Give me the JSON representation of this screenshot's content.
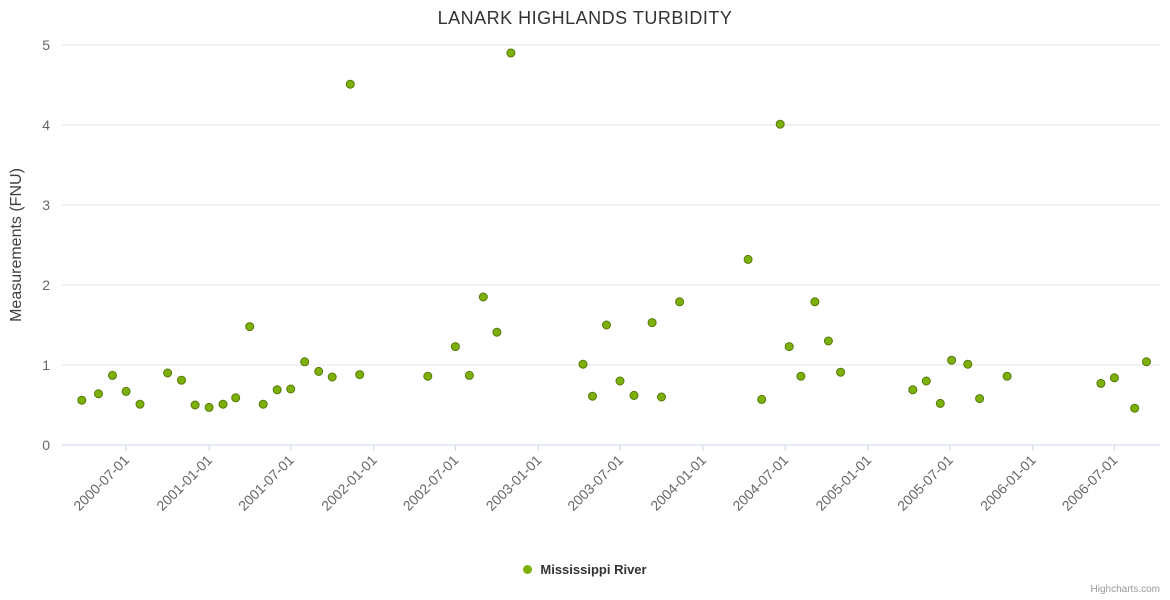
{
  "credits": "Highcharts.com",
  "chart_data": {
    "type": "scatter",
    "title": "LANARK HIGHLANDS TURBIDITY",
    "xlabel": "",
    "ylabel": "Measurements (FNU)",
    "series_name": "Mississippi River",
    "ylim": [
      0,
      5
    ],
    "y_ticks": [
      "0",
      "1",
      "2",
      "3",
      "4",
      "5"
    ],
    "x_range": [
      "2000-02-10",
      "2006-10-10"
    ],
    "x_ticks": [
      "2000-07-01",
      "2001-01-01",
      "2001-07-01",
      "2002-01-01",
      "2002-07-01",
      "2003-01-01",
      "2003-07-01",
      "2004-01-01",
      "2004-07-01",
      "2005-01-01",
      "2005-07-01",
      "2006-01-01",
      "2006-07-01"
    ],
    "grid": "horizontal-only",
    "legend_position": "bottom-center",
    "series": [
      {
        "name": "Mississippi River",
        "points": [
          [
            "2000-03-25",
            0.56
          ],
          [
            "2000-05-01",
            0.64
          ],
          [
            "2000-06-01",
            0.87
          ],
          [
            "2000-07-01",
            0.67
          ],
          [
            "2000-08-01",
            0.51
          ],
          [
            "2000-10-01",
            0.9
          ],
          [
            "2000-11-01",
            0.81
          ],
          [
            "2000-12-01",
            0.5
          ],
          [
            "2001-01-01",
            0.47
          ],
          [
            "2001-02-01",
            0.51
          ],
          [
            "2001-03-01",
            0.59
          ],
          [
            "2001-04-01",
            1.48
          ],
          [
            "2001-05-01",
            0.51
          ],
          [
            "2001-06-01",
            0.69
          ],
          [
            "2001-07-01",
            0.7
          ],
          [
            "2001-08-01",
            1.04
          ],
          [
            "2001-09-01",
            0.92
          ],
          [
            "2001-10-01",
            0.85
          ],
          [
            "2001-11-10",
            4.51
          ],
          [
            "2001-12-01",
            0.88
          ],
          [
            "2002-05-01",
            0.86
          ],
          [
            "2002-07-01",
            1.23
          ],
          [
            "2002-08-01",
            0.87
          ],
          [
            "2002-09-01",
            1.85
          ],
          [
            "2002-10-01",
            1.41
          ],
          [
            "2002-11-01",
            4.9
          ],
          [
            "2003-04-10",
            1.01
          ],
          [
            "2003-05-01",
            0.61
          ],
          [
            "2003-06-01",
            1.5
          ],
          [
            "2003-07-01",
            0.8
          ],
          [
            "2003-08-01",
            0.62
          ],
          [
            "2003-09-10",
            1.53
          ],
          [
            "2003-10-01",
            0.6
          ],
          [
            "2003-11-10",
            1.79
          ],
          [
            "2004-04-10",
            2.32
          ],
          [
            "2004-05-10",
            0.57
          ],
          [
            "2004-06-20",
            4.01
          ],
          [
            "2004-07-10",
            1.23
          ],
          [
            "2004-08-05",
            0.86
          ],
          [
            "2004-09-05",
            1.79
          ],
          [
            "2004-10-05",
            1.3
          ],
          [
            "2004-11-01",
            0.91
          ],
          [
            "2005-04-10",
            0.69
          ],
          [
            "2005-05-10",
            0.8
          ],
          [
            "2005-06-10",
            0.52
          ],
          [
            "2005-07-05",
            1.06
          ],
          [
            "2005-08-10",
            1.01
          ],
          [
            "2005-09-05",
            0.58
          ],
          [
            "2005-11-05",
            0.86
          ],
          [
            "2006-06-01",
            0.77
          ],
          [
            "2006-07-01",
            0.84
          ],
          [
            "2006-08-15",
            0.46
          ],
          [
            "2006-09-10",
            1.04
          ]
        ]
      }
    ],
    "colors": {
      "point": "#7db10a",
      "point_edge": "#55790a",
      "grid": "#e6e6e6",
      "axis_line": "#ccd6eb",
      "tick_text": "#666666",
      "title_text": "#333333",
      "axis_title_text": "#3f3f3f",
      "legend_text": "#333333",
      "credits_text": "#999999"
    }
  }
}
